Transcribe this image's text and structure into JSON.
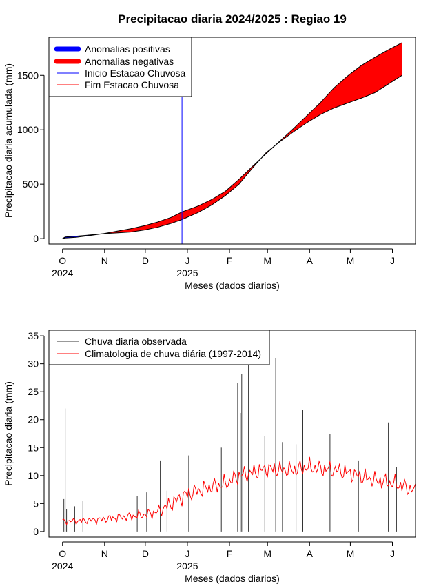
{
  "title": "Precipitacao diaria 2024/2025 : Regiao 19",
  "month_labels": [
    "O",
    "N",
    "D",
    "J",
    "F",
    "M",
    "A",
    "M",
    "J"
  ],
  "year_labels": [
    "2024",
    "2025"
  ],
  "chart_data": [
    {
      "type": "area",
      "title": "Precipitacao diaria 2024/2025 : Regiao 19",
      "xlabel": "Meses (dados diarios)",
      "ylabel": "Precipitacao diaria acumulada (mm)",
      "ylim": [
        -50,
        1850
      ],
      "yticks": [
        0,
        500,
        1000,
        1500
      ],
      "x_unit": "days since 2024-10-01",
      "xticks_days": [
        0,
        31,
        61,
        92,
        123,
        151,
        182,
        212,
        243
      ],
      "xlim": [
        -10,
        260
      ],
      "legend_position": "top-left",
      "legend": [
        {
          "label": "Anomalias positivas",
          "color": "#0000ff",
          "style": "thick"
        },
        {
          "label": "Anomalias negativas",
          "color": "#ff0000",
          "style": "thick"
        },
        {
          "label": "Inicio Estacao Chuvosa",
          "color": "#0000ff",
          "style": "thin"
        },
        {
          "label": "Fim Estacao Chuvosa",
          "color": "#ff0000",
          "style": "thin"
        }
      ],
      "rainy_season_start_day": 88,
      "series": [
        {
          "name": "observed_cumulative",
          "x": [
            0,
            2,
            10,
            20,
            30,
            40,
            50,
            60,
            70,
            80,
            88,
            100,
            110,
            120,
            130,
            140,
            150,
            160,
            170,
            180,
            190,
            200,
            210,
            220,
            230,
            240,
            250
          ],
          "values": [
            0,
            15,
            22,
            33,
            45,
            52,
            60,
            78,
            104,
            140,
            175,
            240,
            310,
            395,
            500,
            650,
            790,
            890,
            980,
            1065,
            1140,
            1200,
            1245,
            1290,
            1340,
            1420,
            1500
          ]
        },
        {
          "name": "climatology_cumulative",
          "x": [
            0,
            2,
            10,
            20,
            30,
            40,
            50,
            60,
            70,
            80,
            88,
            100,
            110,
            120,
            130,
            140,
            150,
            160,
            170,
            180,
            190,
            200,
            210,
            220,
            230,
            240,
            250
          ],
          "values": [
            0,
            5,
            12,
            28,
            45,
            68,
            90,
            118,
            152,
            195,
            245,
            300,
            360,
            435,
            545,
            665,
            780,
            895,
            1010,
            1130,
            1250,
            1385,
            1495,
            1590,
            1665,
            1735,
            1800
          ]
        }
      ]
    },
    {
      "type": "bar",
      "xlabel": "Meses (dados diarios)",
      "ylabel": "Precipitacao diaria (mm)",
      "ylim": [
        -1,
        36
      ],
      "yticks": [
        0,
        5,
        10,
        15,
        20,
        25,
        30,
        35
      ],
      "x_unit": "days since 2024-10-01",
      "xticks_days": [
        0,
        31,
        61,
        92,
        123,
        151,
        182,
        212,
        243
      ],
      "xlim": [
        -10,
        260
      ],
      "legend_position": "top-left",
      "legend": [
        {
          "label": "Chuva diaria observada",
          "color": "#333333"
        },
        {
          "label": "Climatologia de chuva diária (1997-2014)",
          "color": "#ff0000"
        }
      ],
      "peaks": [
        {
          "day": 1,
          "value": 5.8
        },
        {
          "day": 2,
          "value": 22
        },
        {
          "day": 3,
          "value": 4
        },
        {
          "day": 9,
          "value": 4.5
        },
        {
          "day": 15,
          "value": 5.5
        },
        {
          "day": 55,
          "value": 6.4
        },
        {
          "day": 62,
          "value": 7
        },
        {
          "day": 72,
          "value": 12.7
        },
        {
          "day": 77,
          "value": 7.3
        },
        {
          "day": 93,
          "value": 13.6
        },
        {
          "day": 117,
          "value": 15
        },
        {
          "day": 129,
          "value": 26.5
        },
        {
          "day": 131,
          "value": 21.2
        },
        {
          "day": 132,
          "value": 28.2
        },
        {
          "day": 137,
          "value": 30
        },
        {
          "day": 149,
          "value": 17.1
        },
        {
          "day": 157,
          "value": 31
        },
        {
          "day": 162,
          "value": 16
        },
        {
          "day": 172,
          "value": 15.6
        },
        {
          "day": 177,
          "value": 21.8
        },
        {
          "day": 197,
          "value": 17.5
        },
        {
          "day": 211,
          "value": 12.4
        },
        {
          "day": 218,
          "value": 12.7
        },
        {
          "day": 240,
          "value": 19.5
        },
        {
          "day": 246,
          "value": 11.5
        }
      ],
      "climatology": {
        "x": [
          0,
          10,
          20,
          30,
          40,
          50,
          60,
          70,
          80,
          90,
          100,
          110,
          120,
          130,
          140,
          150,
          160,
          170,
          180,
          190,
          200,
          210,
          220,
          230,
          240,
          250,
          260
        ],
        "values": [
          1.8,
          1.9,
          2.0,
          2.2,
          2.5,
          2.7,
          3.0,
          3.5,
          5.0,
          6.5,
          7.3,
          8.0,
          8.5,
          10.0,
          10.5,
          11.2,
          11.0,
          11.0,
          11.5,
          11.2,
          11.0,
          10.5,
          9.8,
          9.2,
          8.8,
          8.2,
          7.2
        ]
      }
    }
  ]
}
